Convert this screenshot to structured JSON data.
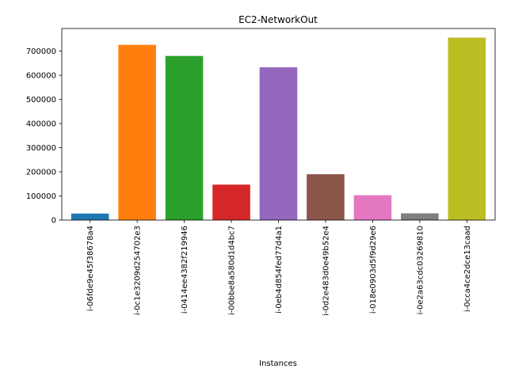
{
  "chart_data": {
    "type": "bar",
    "title": "EC2-NetworkOut",
    "xlabel": "Instances",
    "ylabel": "",
    "categories": [
      "i-06fde9e45f38678a4",
      "i-0c1e3209d254702e3",
      "i-0414ee4382f219946",
      "i-00bbe8a580d1d4bc7",
      "i-0eb4d854fed77d4a1",
      "i-0d2e483d0e49b52e4",
      "i-018e0903d5f9d29e6",
      "i-0e2a63cdc03269810",
      "i-0cca4ce2dce13caad"
    ],
    "values": [
      27000,
      726000,
      680000,
      147000,
      633000,
      190000,
      103000,
      28000,
      756000
    ],
    "colors": [
      "#1f77b4",
      "#ff7f0e",
      "#2ca02c",
      "#d62728",
      "#9467bd",
      "#8c564b",
      "#e377c2",
      "#7f7f7f",
      "#bcbd22"
    ],
    "ylim": [
      0,
      793800
    ],
    "yticks": [
      0,
      100000,
      200000,
      300000,
      400000,
      500000,
      600000,
      700000
    ],
    "ytick_labels": [
      "0",
      "100000",
      "200000",
      "300000",
      "400000",
      "500000",
      "600000",
      "700000"
    ],
    "grid": false,
    "legend": "none"
  }
}
